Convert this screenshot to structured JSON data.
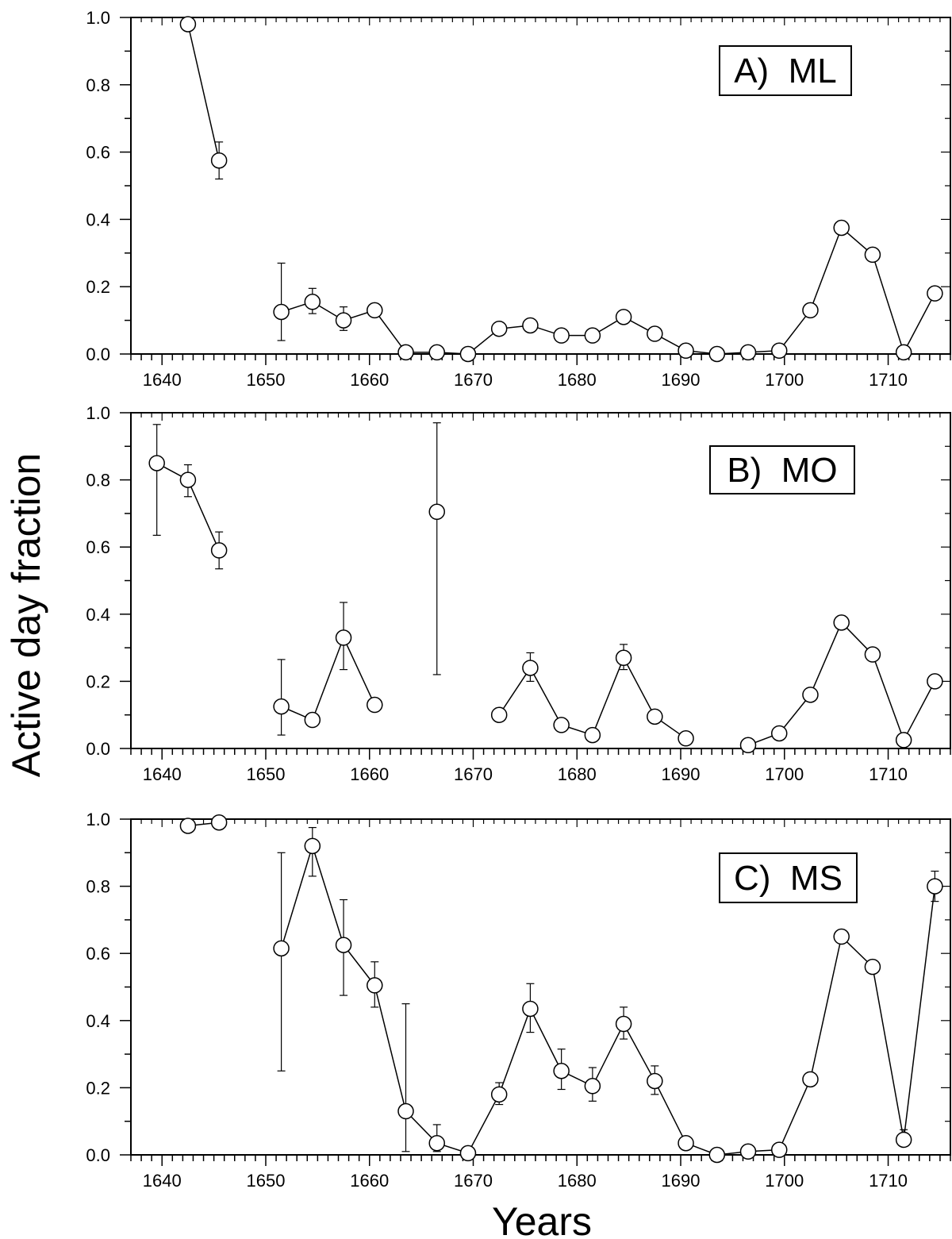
{
  "chart_data": [
    {
      "type": "line",
      "panel_label": "A)  ML",
      "ylabel": "Active day fraction",
      "xlabel": "Years",
      "xlim": [
        1637,
        1716
      ],
      "ylim": [
        0,
        1
      ],
      "x_ticks": [
        1640,
        1650,
        1660,
        1670,
        1680,
        1690,
        1700,
        1710
      ],
      "y_ticks": [
        0.0,
        0.2,
        0.4,
        0.6,
        0.8,
        1.0
      ],
      "y_tick_labels": [
        "0.0",
        "0.2",
        "0.4",
        "0.6",
        "0.8",
        "1.0"
      ],
      "series": [
        {
          "points": [
            {
              "x": 1642.5,
              "y": 0.98,
              "lo": 0.96,
              "hi": 1.0
            },
            {
              "x": 1645.5,
              "y": 0.575,
              "lo": 0.52,
              "hi": 0.63
            },
            {
              "x": 1651.5,
              "y": 0.125,
              "lo": 0.04,
              "hi": 0.27
            },
            {
              "x": 1654.5,
              "y": 0.155,
              "lo": 0.12,
              "hi": 0.195
            },
            {
              "x": 1657.5,
              "y": 0.1,
              "lo": 0.07,
              "hi": 0.14
            },
            {
              "x": 1660.5,
              "y": 0.13,
              "lo": 0.115,
              "hi": 0.15
            },
            {
              "x": 1663.5,
              "y": 0.005,
              "lo": 0.0,
              "hi": 0.015
            },
            {
              "x": 1666.5,
              "y": 0.005,
              "lo": 0.0,
              "hi": 0.015
            },
            {
              "x": 1669.5,
              "y": 0.0,
              "lo": 0.0,
              "hi": 0.01
            },
            {
              "x": 1672.5,
              "y": 0.075,
              "lo": 0.06,
              "hi": 0.09
            },
            {
              "x": 1675.5,
              "y": 0.085,
              "lo": 0.07,
              "hi": 0.1
            },
            {
              "x": 1678.5,
              "y": 0.055,
              "lo": 0.04,
              "hi": 0.07
            },
            {
              "x": 1681.5,
              "y": 0.055,
              "lo": 0.04,
              "hi": 0.07
            },
            {
              "x": 1684.5,
              "y": 0.11,
              "lo": 0.09,
              "hi": 0.125
            },
            {
              "x": 1687.5,
              "y": 0.06,
              "lo": 0.045,
              "hi": 0.075
            },
            {
              "x": 1690.5,
              "y": 0.01,
              "lo": 0.0,
              "hi": 0.02
            },
            {
              "x": 1693.5,
              "y": 0.0,
              "lo": 0.0,
              "hi": 0.01
            },
            {
              "x": 1696.5,
              "y": 0.005,
              "lo": 0.0,
              "hi": 0.015
            },
            {
              "x": 1699.5,
              "y": 0.01,
              "lo": 0.0,
              "hi": 0.02
            },
            {
              "x": 1702.5,
              "y": 0.13,
              "lo": 0.115,
              "hi": 0.145
            },
            {
              "x": 1705.5,
              "y": 0.375,
              "lo": 0.36,
              "hi": 0.395
            },
            {
              "x": 1708.5,
              "y": 0.295,
              "lo": 0.28,
              "hi": 0.31
            },
            {
              "x": 1711.5,
              "y": 0.005,
              "lo": 0.0,
              "hi": 0.015
            },
            {
              "x": 1714.5,
              "y": 0.18,
              "lo": 0.165,
              "hi": 0.195
            }
          ],
          "segments": [
            [
              0,
              1
            ],
            [
              2,
              23
            ]
          ]
        }
      ]
    },
    {
      "type": "line",
      "panel_label": "B)  MO",
      "xlim": [
        1637,
        1716
      ],
      "ylim": [
        0,
        1
      ],
      "x_ticks": [
        1640,
        1650,
        1660,
        1670,
        1680,
        1690,
        1700,
        1710
      ],
      "y_ticks": [
        0.0,
        0.2,
        0.4,
        0.6,
        0.8,
        1.0
      ],
      "y_tick_labels": [
        "0.0",
        "0.2",
        "0.4",
        "0.6",
        "0.8",
        "1.0"
      ],
      "series": [
        {
          "points": [
            {
              "x": 1639.5,
              "y": 0.85,
              "lo": 0.635,
              "hi": 0.965
            },
            {
              "x": 1642.5,
              "y": 0.8,
              "lo": 0.75,
              "hi": 0.845
            },
            {
              "x": 1645.5,
              "y": 0.59,
              "lo": 0.535,
              "hi": 0.645
            },
            {
              "x": 1651.5,
              "y": 0.125,
              "lo": 0.04,
              "hi": 0.265
            },
            {
              "x": 1654.5,
              "y": 0.085,
              "lo": 0.075,
              "hi": 0.095
            },
            {
              "x": 1657.5,
              "y": 0.33,
              "lo": 0.235,
              "hi": 0.435
            },
            {
              "x": 1660.5,
              "y": 0.13,
              "lo": 0.11,
              "hi": 0.145
            },
            {
              "x": 1666.5,
              "y": 0.705,
              "lo": 0.22,
              "hi": 0.97
            },
            {
              "x": 1672.5,
              "y": 0.1,
              "lo": 0.085,
              "hi": 0.12
            },
            {
              "x": 1675.5,
              "y": 0.24,
              "lo": 0.2,
              "hi": 0.285
            },
            {
              "x": 1678.5,
              "y": 0.07,
              "lo": 0.055,
              "hi": 0.085
            },
            {
              "x": 1681.5,
              "y": 0.04,
              "lo": 0.025,
              "hi": 0.055
            },
            {
              "x": 1684.5,
              "y": 0.27,
              "lo": 0.235,
              "hi": 0.31
            },
            {
              "x": 1687.5,
              "y": 0.095,
              "lo": 0.08,
              "hi": 0.11
            },
            {
              "x": 1690.5,
              "y": 0.03,
              "lo": 0.02,
              "hi": 0.04
            },
            {
              "x": 1696.5,
              "y": 0.01,
              "lo": 0.0,
              "hi": 0.025
            },
            {
              "x": 1699.5,
              "y": 0.045,
              "lo": 0.03,
              "hi": 0.06
            },
            {
              "x": 1702.5,
              "y": 0.16,
              "lo": 0.145,
              "hi": 0.175
            },
            {
              "x": 1705.5,
              "y": 0.375,
              "lo": 0.355,
              "hi": 0.395
            },
            {
              "x": 1708.5,
              "y": 0.28,
              "lo": 0.265,
              "hi": 0.295
            },
            {
              "x": 1711.5,
              "y": 0.025,
              "lo": 0.01,
              "hi": 0.04
            },
            {
              "x": 1714.5,
              "y": 0.2,
              "lo": 0.185,
              "hi": 0.215
            }
          ],
          "segments": [
            [
              0,
              2
            ],
            [
              3,
              6
            ],
            [
              7,
              7
            ],
            [
              8,
              14
            ],
            [
              15,
              21
            ]
          ]
        }
      ]
    },
    {
      "type": "line",
      "panel_label": "C)  MS",
      "xlim": [
        1637,
        1716
      ],
      "ylim": [
        0,
        1
      ],
      "x_ticks": [
        1640,
        1650,
        1660,
        1670,
        1680,
        1690,
        1700,
        1710
      ],
      "x_tick_labels": [
        "1640",
        "1650",
        "1660",
        "1670",
        "1680",
        "1690",
        "1700",
        "1710"
      ],
      "y_ticks": [
        0.0,
        0.2,
        0.4,
        0.6,
        0.8,
        1.0
      ],
      "y_tick_labels": [
        "0.0",
        "0.2",
        "0.4",
        "0.6",
        "0.8",
        "1.0"
      ],
      "series": [
        {
          "points": [
            {
              "x": 1642.5,
              "y": 0.98,
              "lo": 0.97,
              "hi": 0.99
            },
            {
              "x": 1645.5,
              "y": 0.99,
              "lo": 0.98,
              "hi": 1.0
            },
            {
              "x": 1651.5,
              "y": 0.615,
              "lo": 0.25,
              "hi": 0.9
            },
            {
              "x": 1654.5,
              "y": 0.92,
              "lo": 0.83,
              "hi": 0.975
            },
            {
              "x": 1657.5,
              "y": 0.625,
              "lo": 0.475,
              "hi": 0.76
            },
            {
              "x": 1660.5,
              "y": 0.505,
              "lo": 0.44,
              "hi": 0.575
            },
            {
              "x": 1663.5,
              "y": 0.13,
              "lo": 0.01,
              "hi": 0.45
            },
            {
              "x": 1666.5,
              "y": 0.035,
              "lo": 0.01,
              "hi": 0.09
            },
            {
              "x": 1669.5,
              "y": 0.005,
              "lo": 0.0,
              "hi": 0.02
            },
            {
              "x": 1672.5,
              "y": 0.18,
              "lo": 0.15,
              "hi": 0.215
            },
            {
              "x": 1675.5,
              "y": 0.435,
              "lo": 0.365,
              "hi": 0.51
            },
            {
              "x": 1678.5,
              "y": 0.25,
              "lo": 0.195,
              "hi": 0.315
            },
            {
              "x": 1681.5,
              "y": 0.205,
              "lo": 0.16,
              "hi": 0.26
            },
            {
              "x": 1684.5,
              "y": 0.39,
              "lo": 0.345,
              "hi": 0.44
            },
            {
              "x": 1687.5,
              "y": 0.22,
              "lo": 0.18,
              "hi": 0.265
            },
            {
              "x": 1690.5,
              "y": 0.035,
              "lo": 0.025,
              "hi": 0.045
            },
            {
              "x": 1693.5,
              "y": 0.0,
              "lo": 0.0,
              "hi": 0.01
            },
            {
              "x": 1696.5,
              "y": 0.01,
              "lo": 0.0,
              "hi": 0.02
            },
            {
              "x": 1699.5,
              "y": 0.015,
              "lo": 0.005,
              "hi": 0.025
            },
            {
              "x": 1702.5,
              "y": 0.225,
              "lo": 0.215,
              "hi": 0.235
            },
            {
              "x": 1705.5,
              "y": 0.65,
              "lo": 0.64,
              "hi": 0.66
            },
            {
              "x": 1708.5,
              "y": 0.56,
              "lo": 0.545,
              "hi": 0.575
            },
            {
              "x": 1711.5,
              "y": 0.045,
              "lo": 0.035,
              "hi": 0.075
            },
            {
              "x": 1714.5,
              "y": 0.8,
              "lo": 0.755,
              "hi": 0.845
            }
          ],
          "segments": [
            [
              0,
              1
            ],
            [
              2,
              23
            ]
          ]
        }
      ]
    }
  ],
  "axes": {
    "ylabel": "Active day fraction",
    "xlabel": "Years"
  },
  "style": {
    "line_color": "#000000",
    "marker_fill": "#ffffff",
    "background": "#ffffff"
  }
}
